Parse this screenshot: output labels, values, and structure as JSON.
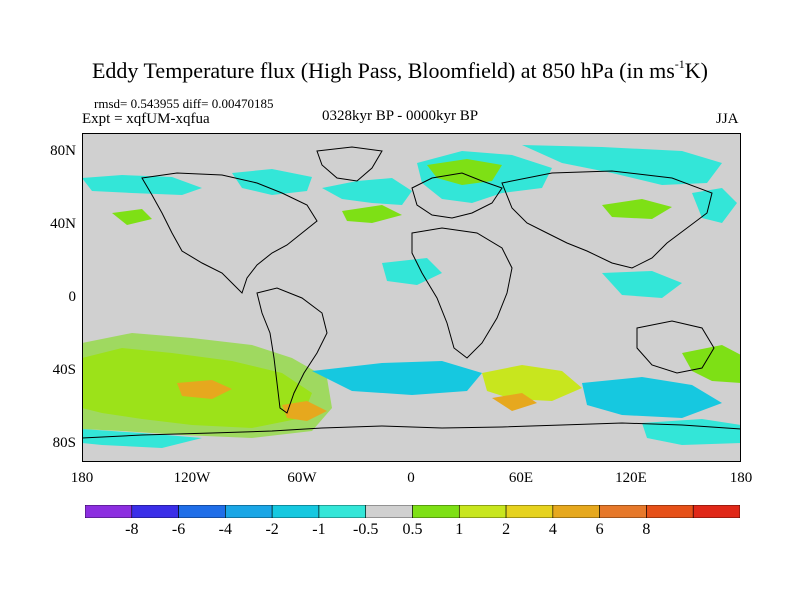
{
  "title": {
    "main": "Eddy Temperature flux (High Pass, Bloomfield) at 850 hPa (in ms",
    "sup": "-1",
    "tail": "K)"
  },
  "stats": "rmsd= 0.543955 diff= 0.00470185",
  "expt": "Expt = xqfUM-xqfua",
  "period": "0328kyr BP - 0000kyr BP",
  "season": "JJA",
  "lat_ticks": [
    "80N",
    "40N",
    "0",
    "40S",
    "80S"
  ],
  "lon_ticks": [
    "180",
    "120W",
    "60W",
    "0",
    "60E",
    "120E",
    "180"
  ],
  "colorbar": {
    "colors": [
      "#8c2ee0",
      "#3a2ee8",
      "#1f6ee8",
      "#1aa6e6",
      "#16c8e0",
      "#33e6d8",
      "#d0d0d0",
      "#7ee015",
      "#c8e61e",
      "#e6d21e",
      "#e6a81e",
      "#e6782a",
      "#e65018",
      "#e02818"
    ],
    "labels": [
      "-8",
      "-6",
      "-4",
      "-2",
      "-1",
      "-0.5",
      "0.5",
      "1",
      "2",
      "4",
      "6",
      "8"
    ]
  },
  "map_colors": {
    "background": "#d0d0d0",
    "neg_small": "#33e6d8",
    "neg_mid": "#16c8e0",
    "pos_small": "#7ee015",
    "pos_mid": "#c8e61e",
    "pos_big": "#e6a81e"
  }
}
